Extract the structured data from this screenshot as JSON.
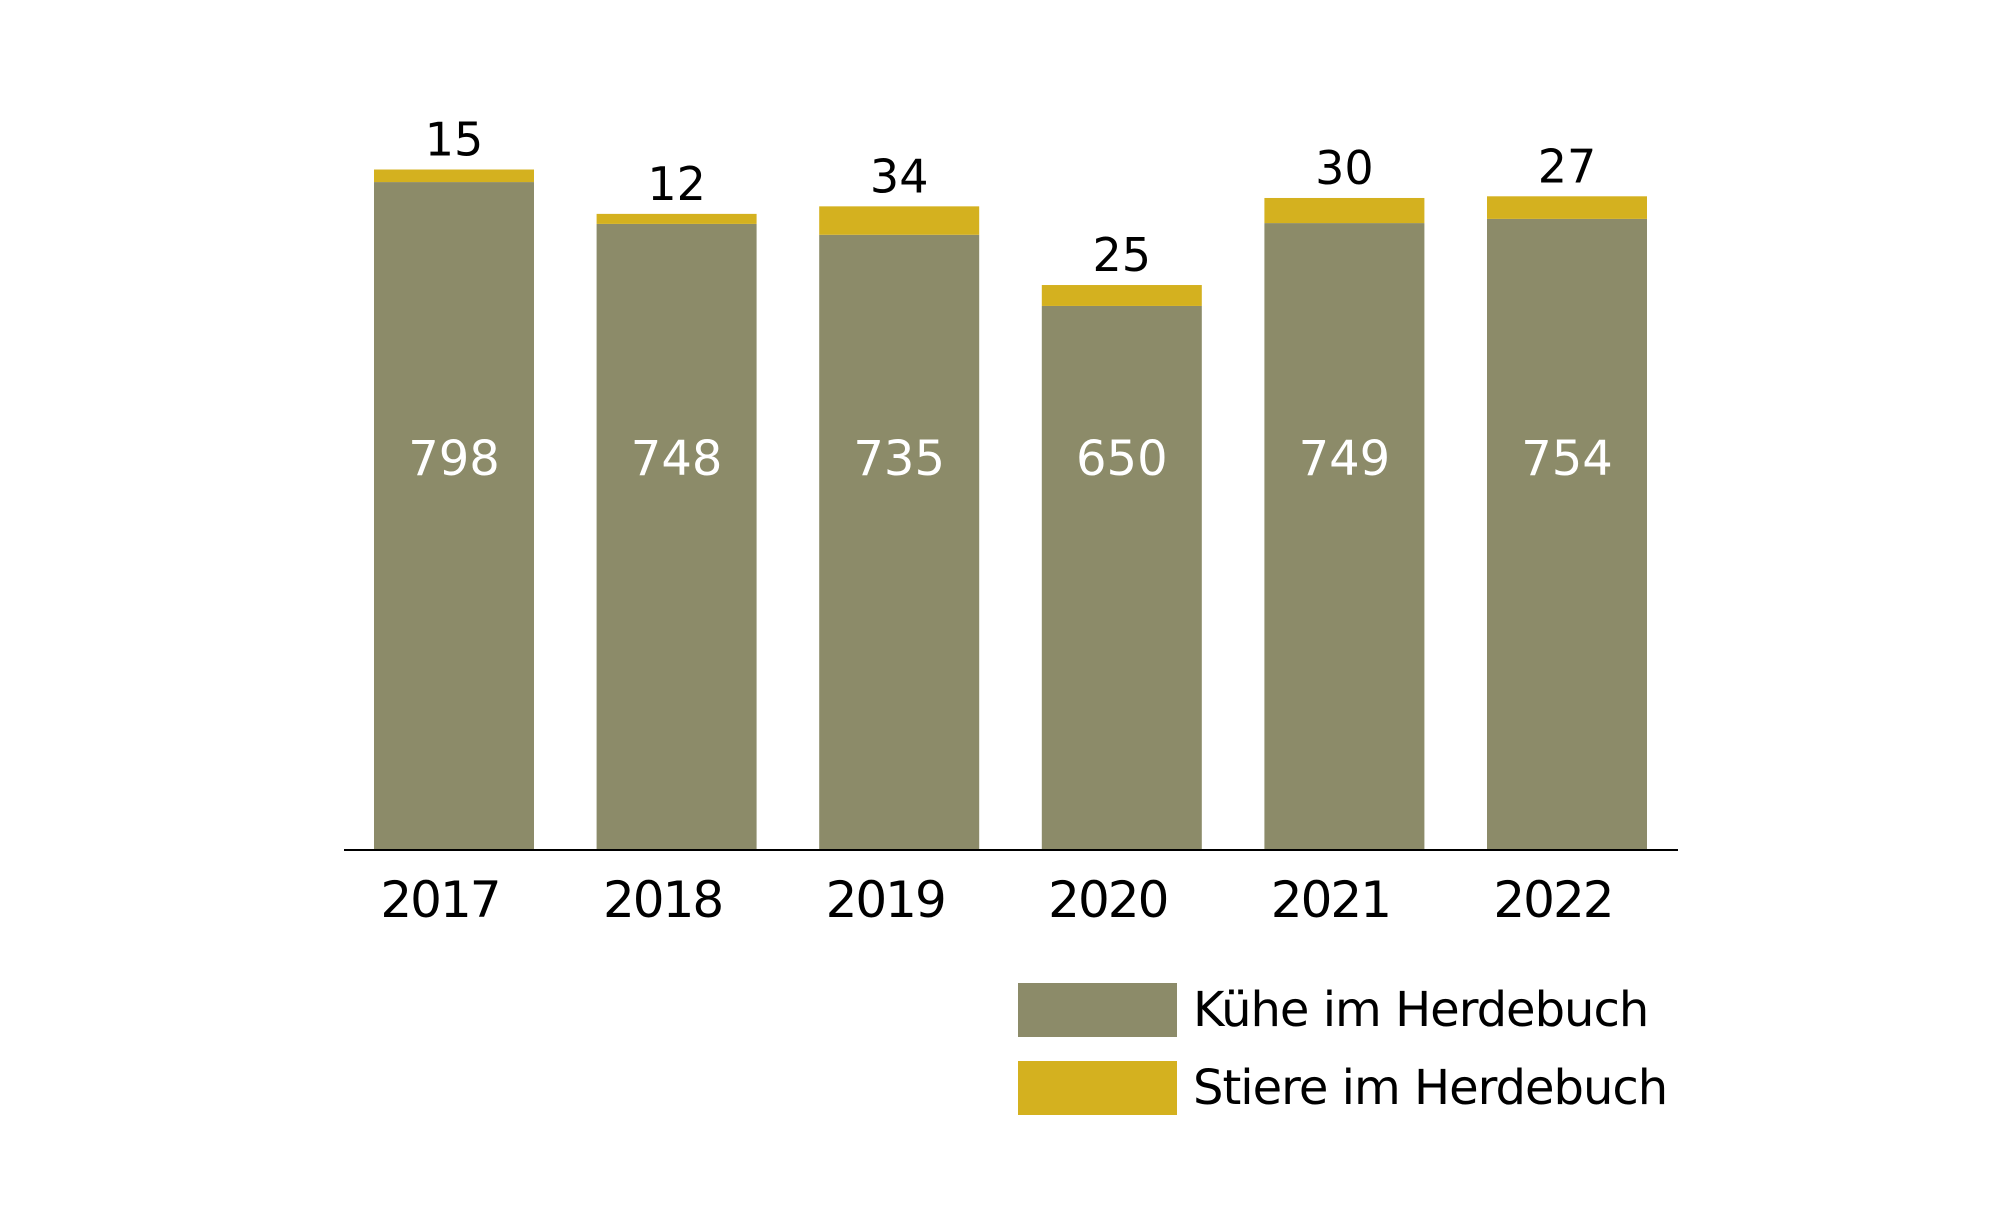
{
  "chart_data": {
    "type": "bar",
    "stacked": true,
    "title": "",
    "xlabel": "",
    "ylabel": "",
    "categories": [
      "2017",
      "2018",
      "2019",
      "2020",
      "2021",
      "2022"
    ],
    "series": [
      {
        "name": "Kühe im Herdebuch",
        "color": "#8c8b69",
        "values": [
          798,
          748,
          735,
          650,
          749,
          754
        ]
      },
      {
        "name": "Stiere im Herdebuch",
        "color": "#d4b11f",
        "values": [
          15,
          12,
          34,
          25,
          30,
          27
        ]
      }
    ],
    "ylim": [
      0,
      820
    ],
    "grid": false,
    "legend_position": "bottom-right"
  }
}
